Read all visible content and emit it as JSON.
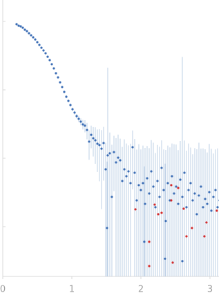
{
  "chart_data": {
    "type": "scatter",
    "log_y": true,
    "xlim": [
      0,
      3.13
    ],
    "xticks": [
      0,
      1,
      2,
      3
    ],
    "ylim": [
      1.87e-05,
      0.206
    ],
    "yticks": [
      0.0001,
      0.001,
      0.01,
      0.1
    ],
    "error_color": "#adc4e0",
    "series": [
      {
        "color": "#3a6cb4",
        "x": [
          0.2,
          0.23,
          0.26,
          0.29,
          0.32,
          0.35,
          0.38,
          0.41,
          0.44,
          0.47,
          0.5,
          0.53,
          0.56,
          0.59,
          0.62,
          0.65,
          0.68,
          0.71,
          0.74,
          0.77,
          0.8,
          0.83,
          0.86,
          0.89,
          0.92,
          0.95,
          0.98,
          1.01,
          1.04,
          1.07,
          1.1,
          1.13,
          1.16,
          1.19,
          1.22,
          1.25,
          1.28,
          1.31,
          1.34,
          1.37,
          1.4,
          1.43,
          1.46,
          1.49,
          1.52,
          1.55,
          1.58,
          1.61,
          1.64,
          1.67,
          1.7,
          1.73,
          1.76,
          1.79,
          1.82,
          1.85,
          1.88,
          1.91,
          1.94,
          1.97,
          2.0,
          2.03,
          2.06,
          2.09,
          2.12,
          2.15,
          2.18,
          2.21,
          2.24,
          2.27,
          2.3,
          2.33,
          2.36,
          2.39,
          2.42,
          2.45,
          2.48,
          2.51,
          2.54,
          2.57,
          2.6,
          2.63,
          2.66,
          2.69,
          2.72,
          2.75,
          2.78,
          2.81,
          2.84,
          2.87,
          2.9,
          2.93,
          2.96,
          2.99,
          3.02,
          3.05,
          3.08,
          3.11,
          3.14,
          1.51,
          2.05,
          2.6,
          2.35
        ],
        "values": [
          0.0912,
          0.0869,
          0.0849,
          0.0811,
          0.0757,
          0.0722,
          0.0673,
          0.0628,
          0.0586,
          0.0546,
          0.0498,
          0.0454,
          0.0413,
          0.0377,
          0.0343,
          0.0305,
          0.0272,
          0.0237,
          0.0206,
          0.0175,
          0.0152,
          0.0129,
          0.011,
          0.00933,
          0.00793,
          0.00689,
          0.006,
          0.00521,
          0.00465,
          0.00413,
          0.00377,
          0.00343,
          0.00313,
          0.00299,
          0.00259,
          0.00175,
          0.0022,
          0.00196,
          0.00183,
          0.00163,
          0.00156,
          0.00138,
          0.00167,
          0.000689,
          0.0011,
          0.00118,
          0.000272,
          0.00123,
          0.000869,
          0.00102,
          0.000933,
          0.000465,
          0.000689,
          0.000546,
          0.000643,
          0.000433,
          0.00145,
          0.000614,
          0.000242,
          0.000404,
          0.000343,
          0.000433,
          0.000215,
          0.000509,
          0.000305,
          0.000643,
          0.000385,
          0.000192,
          0.000465,
          0.000272,
          0.000723,
          0.000343,
          0.000121,
          0.000433,
          0.000242,
          0.000546,
          0.000305,
          0.000385,
          0.000215,
          0.000486,
          0.000272,
          0.000614,
          0.000192,
          0.000343,
          0.000433,
          0.000242,
          0.000305,
          0.000152,
          0.000285,
          0.000385,
          0.000192,
          0.000254,
          0.000215,
          0.00032,
          0.000171,
          0.000272,
          0.000343,
          0.000192,
          0.000242,
          9.55e-05,
          6e-05,
          3.13e-05,
          3.4e-05
        ],
        "errors": [
          0.0015,
          0.0015,
          0.0014,
          0.0014,
          0.0013,
          0.0013,
          0.0012,
          0.0012,
          0.0011,
          0.0011,
          0.001,
          0.001,
          0.0009,
          0.0009,
          0.0008,
          0.0008,
          0.0007,
          0.0007,
          0.0006,
          0.0006,
          0.0005,
          0.0005,
          0.0004,
          0.0004,
          0.0004,
          0.0003,
          0.0003,
          0.0003,
          0.0003,
          0.0003,
          0.0004,
          0.0004,
          0.0005,
          0.0006,
          0.0007,
          0.0008,
          0.0008,
          0.0009,
          0.001,
          0.001,
          0.0011,
          0.0012,
          0.0012,
          0.001,
          0.02,
          0.0012,
          0.0013,
          0.0009,
          0.0011,
          0.0012,
          0.001,
          0.001,
          0.0012,
          0.0011,
          0.0009,
          0.0012,
          0.0011,
          0.0013,
          0.0011,
          0.0012,
          0.001,
          0.0011,
          0.0012,
          0.001,
          0.0011,
          0.0012,
          0.0013,
          0.001,
          0.0011,
          0.0012,
          0.0011,
          0.001,
          0.0012,
          0.0011,
          0.0012,
          0.0011,
          0.0013,
          0.0012,
          0.0011,
          0.0013,
          0.03,
          0.0012,
          0.0011,
          0.0013,
          0.001,
          0.0009,
          0.0011,
          0.0012,
          0.0014,
          0.001,
          0.0012,
          0.0011,
          0.001,
          0.0013,
          0.0012,
          0.0009,
          0.001,
          0.0012,
          0.0011,
          0.0008,
          0.0007,
          0.0006,
          0.0008
        ]
      },
      {
        "color": "#d42a2a",
        "x": [
          1.92,
          2.12,
          2.25,
          2.44,
          2.44,
          2.2,
          2.3,
          2.54,
          2.66,
          2.62,
          2.74,
          2.95,
          2.92,
          3.1,
          2.12,
          2.46
        ],
        "values": [
          0.000179,
          6e-05,
          0.000152,
          0.000404,
          0.000242,
          0.00021,
          0.000159,
          0.000368,
          7.22e-05,
          0.000183,
          9.55e-05,
          0.000115,
          7.22e-05,
          0.000171,
          2.65e-05,
          2.98e-05
        ]
      }
    ]
  }
}
